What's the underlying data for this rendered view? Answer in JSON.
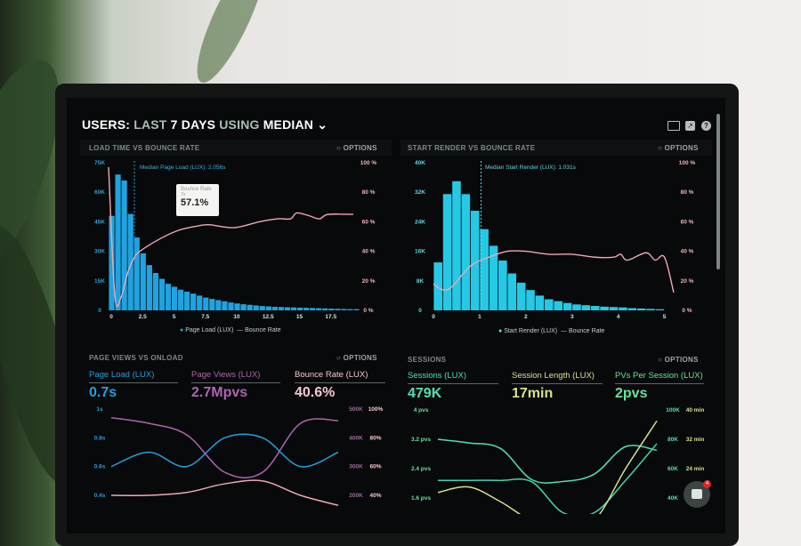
{
  "header": {
    "title_parts": [
      "USERS:",
      "LAST",
      "7 DAYS",
      "USING",
      "MEDIAN"
    ],
    "dropdown_icon": "chevron-down-icon",
    "icons": [
      "monitor-icon",
      "share-icon",
      "help-icon"
    ]
  },
  "colors": {
    "blue": "#1fa3e0",
    "cyan": "#25c9e6",
    "pink": "#f0a7b4",
    "purple": "#b064b0",
    "teal": "#4fe0b5",
    "yellow": "#d9e08a",
    "green": "#69e39b"
  },
  "panels": {
    "load": {
      "title": "LOAD TIME VS BOUNCE RATE",
      "options": "OPTIONS"
    },
    "render": {
      "title": "START RENDER VS BOUNCE RATE",
      "options": "OPTIONS"
    },
    "pageviews": {
      "title": "PAGE VIEWS VS ONLOAD",
      "options": "OPTIONS",
      "metrics": [
        {
          "label": "Page Load (LUX)",
          "value": "0.7s"
        },
        {
          "label": "Page Views (LUX)",
          "value": "2.7Mpvs"
        },
        {
          "label": "Bounce Rate (LUX)",
          "value": "40.6%"
        }
      ]
    },
    "sessions": {
      "title": "SESSIONS",
      "options": "OPTIONS",
      "metrics": [
        {
          "label": "Sessions (LUX)",
          "value": "479K"
        },
        {
          "label": "Session Length (LUX)",
          "value": "17min"
        },
        {
          "label": "PVs Per Session (LUX)",
          "value": "2pvs"
        }
      ]
    }
  },
  "tooltip": {
    "title": "Bounce Rate",
    "subtitle": "7s",
    "value": "57.1%"
  },
  "chat_widget": {
    "badge": "4"
  },
  "chart_data": [
    {
      "type": "bar",
      "x_ticks": [
        "0",
        "2.5",
        "5",
        "7.5",
        "10",
        "12.5",
        "15",
        "17.5"
      ],
      "x_tick_values": [
        0,
        2.5,
        5,
        7.5,
        10,
        12.5,
        15,
        17.5
      ],
      "xlim": [
        0,
        20
      ],
      "y_left_ticks": [
        "0",
        "15K",
        "30K",
        "45K",
        "60K",
        "75K"
      ],
      "ylim_left": [
        0,
        75000
      ],
      "y_right_ticks": [
        "0 %",
        "20 %",
        "40 %",
        "60 %",
        "80 %",
        "100 %"
      ],
      "ylim_right": [
        0,
        100
      ],
      "annotation": "Median Page Load (LUX): 2.056s",
      "median": 2.056,
      "bar_width": 0.5,
      "series": [
        {
          "name": "Page Load (LUX)",
          "kind": "bar",
          "x": [
            0,
            0.5,
            1,
            1.5,
            2,
            2.5,
            3,
            3.5,
            4,
            4.5,
            5,
            5.5,
            6,
            6.5,
            7,
            7.5,
            8,
            8.5,
            9,
            9.5,
            10,
            10.5,
            11,
            11.5,
            12,
            12.5,
            13,
            13.5,
            14,
            14.5,
            15,
            15.5,
            16,
            16.5,
            17,
            17.5,
            18,
            18.5,
            19,
            19.5
          ],
          "values": [
            48000,
            69000,
            66000,
            49000,
            37000,
            29000,
            23000,
            19000,
            16000,
            13500,
            12000,
            10500,
            9500,
            8500,
            7500,
            6500,
            5800,
            5200,
            4600,
            4000,
            3500,
            3100,
            2800,
            2500,
            2200,
            2000,
            1800,
            1700,
            1600,
            1500,
            1400,
            1300,
            1200,
            1100,
            1000,
            900,
            800,
            700,
            600,
            600
          ]
        },
        {
          "name": "Bounce Rate",
          "kind": "line",
          "x": [
            0,
            0.5,
            1,
            1.5,
            2,
            2.5,
            4,
            5.5,
            7,
            8,
            10,
            12,
            13.5,
            14.5,
            15,
            16,
            16.8,
            17.5,
            19.5
          ],
          "values": [
            97,
            10,
            9,
            25,
            35,
            40,
            48,
            54,
            57,
            58,
            56,
            60,
            62,
            62,
            66,
            64,
            62,
            65,
            65
          ]
        }
      ],
      "legend": "bottom"
    },
    {
      "type": "bar",
      "x_ticks": [
        "0",
        "1",
        "2",
        "3",
        "4",
        "5"
      ],
      "x_tick_values": [
        0,
        1,
        2,
        3,
        4,
        5
      ],
      "xlim": [
        0,
        5.2
      ],
      "y_left_ticks": [
        "0",
        "8K",
        "16K",
        "24K",
        "32K",
        "40K"
      ],
      "ylim_left": [
        0,
        40000
      ],
      "y_right_ticks": [
        "0 %",
        "20 %",
        "40 %",
        "60 %",
        "80 %",
        "100 %"
      ],
      "ylim_right": [
        0,
        100
      ],
      "annotation": "Median Start Render (LUX): 1.031s",
      "median": 1.031,
      "bar_width": 0.2,
      "series": [
        {
          "name": "Start Render (LUX)",
          "kind": "bar",
          "x": [
            0.1,
            0.3,
            0.5,
            0.7,
            0.9,
            1.1,
            1.3,
            1.5,
            1.7,
            1.9,
            2.1,
            2.3,
            2.5,
            2.7,
            2.9,
            3.1,
            3.3,
            3.5,
            3.7,
            3.9,
            4.1,
            4.3,
            4.5,
            4.7,
            4.9
          ],
          "values": [
            13000,
            31500,
            35000,
            31500,
            27000,
            22000,
            17500,
            13500,
            10000,
            7500,
            5500,
            4000,
            3000,
            2500,
            2000,
            1600,
            1400,
            1200,
            1000,
            900,
            800,
            600,
            500,
            400,
            300
          ]
        },
        {
          "name": "Bounce Rate",
          "kind": "line",
          "x": [
            0,
            0.2,
            0.4,
            0.8,
            1.2,
            1.6,
            2,
            2.5,
            3,
            3.5,
            3.9,
            4.05,
            4.2,
            4.6,
            4.8,
            5,
            5.2
          ],
          "values": [
            18,
            14,
            16,
            30,
            36,
            40,
            40,
            38,
            38,
            36,
            36,
            38,
            34,
            39,
            34,
            36,
            12
          ]
        }
      ],
      "legend": "bottom"
    },
    {
      "type": "line",
      "y_left_ticks": [
        "0.4s",
        "0.6s",
        "0.8s",
        "1s"
      ],
      "ylim_left": [
        0.4,
        1.0
      ],
      "y_right_ticks_1": [
        "200K",
        "300K",
        "400K",
        "500K"
      ],
      "ylim_right_1": [
        200000,
        500000
      ],
      "y_right_ticks_2": [
        "40%",
        "60%",
        "80%",
        "100%"
      ],
      "ylim_right_2": [
        40,
        100
      ],
      "series": [
        {
          "name": "Page Load (LUX)",
          "axis": "left",
          "values": [
            0.6,
            0.7,
            0.6,
            0.8,
            0.8,
            0.6,
            0.7
          ]
        },
        {
          "name": "Page Views (LUX)",
          "axis": "right_1",
          "values": [
            470000,
            450000,
            410000,
            280000,
            280000,
            450000,
            460000
          ]
        },
        {
          "name": "Bounce Rate (LUX)",
          "axis": "right_2",
          "values": [
            40,
            40,
            42,
            48,
            50,
            40,
            33
          ]
        }
      ]
    },
    {
      "type": "line",
      "y_left_ticks": [
        "1.6 pvs",
        "2.4 pvs",
        "3.2 pvs",
        "4 pvs"
      ],
      "ylim_left": [
        1.6,
        4.0
      ],
      "y_right_ticks_1": [
        "40K",
        "60K",
        "80K",
        "100K"
      ],
      "ylim_right_1": [
        40000,
        100000
      ],
      "y_right_ticks_2": [
        "",
        "24 min",
        "32 min",
        "40 min"
      ],
      "ylim_right_2": [
        16,
        40
      ],
      "series": [
        {
          "name": "PVs Per Session (LUX)",
          "axis": "left",
          "values": [
            3.2,
            3.1,
            2.95,
            2.1,
            2.05,
            2.25,
            3.0,
            2.9
          ]
        },
        {
          "name": "Sessions (LUX)",
          "axis": "right_1",
          "values": [
            52000,
            52000,
            52000,
            51000,
            30000,
            30000,
            52000,
            77000
          ]
        },
        {
          "name": "Session Length (LUX)",
          "axis": "right_2",
          "values": [
            17.5,
            19,
            15,
            10,
            10,
            10,
            24,
            37
          ]
        }
      ]
    }
  ]
}
